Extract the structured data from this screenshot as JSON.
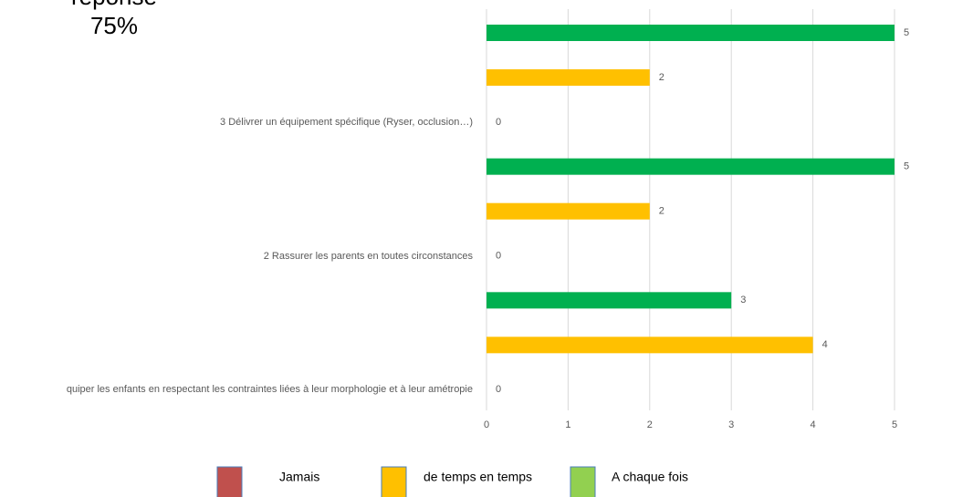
{
  "chart_data": {
    "type": "bar",
    "orientation": "horizontal",
    "annotations": [
      "réponse",
      "75%"
    ],
    "categories": [
      "quiper les enfants en respectant les contraintes liées à leur morphologie et à leur amétropie",
      "2 Rassurer les parents en toutes circonstances",
      "3 Délivrer un équipement spécifique (Ryser, occlusion…)"
    ],
    "series": [
      {
        "name": "Jamais",
        "color": "#c0504d",
        "legend_color": "#c0504d",
        "values": [
          0,
          0,
          0
        ]
      },
      {
        "name": "de temps en temps",
        "color": "#ffc000",
        "legend_color": "#ffc000",
        "values": [
          4,
          2,
          2
        ]
      },
      {
        "name": "A chaque fois",
        "color": "#00b050",
        "legend_color": "#92d050",
        "values": [
          3,
          5,
          5
        ]
      }
    ],
    "xlim": [
      0,
      5
    ],
    "xticks": [
      0,
      1,
      2,
      3,
      4,
      5
    ],
    "grid": true,
    "legend": "bottom"
  }
}
